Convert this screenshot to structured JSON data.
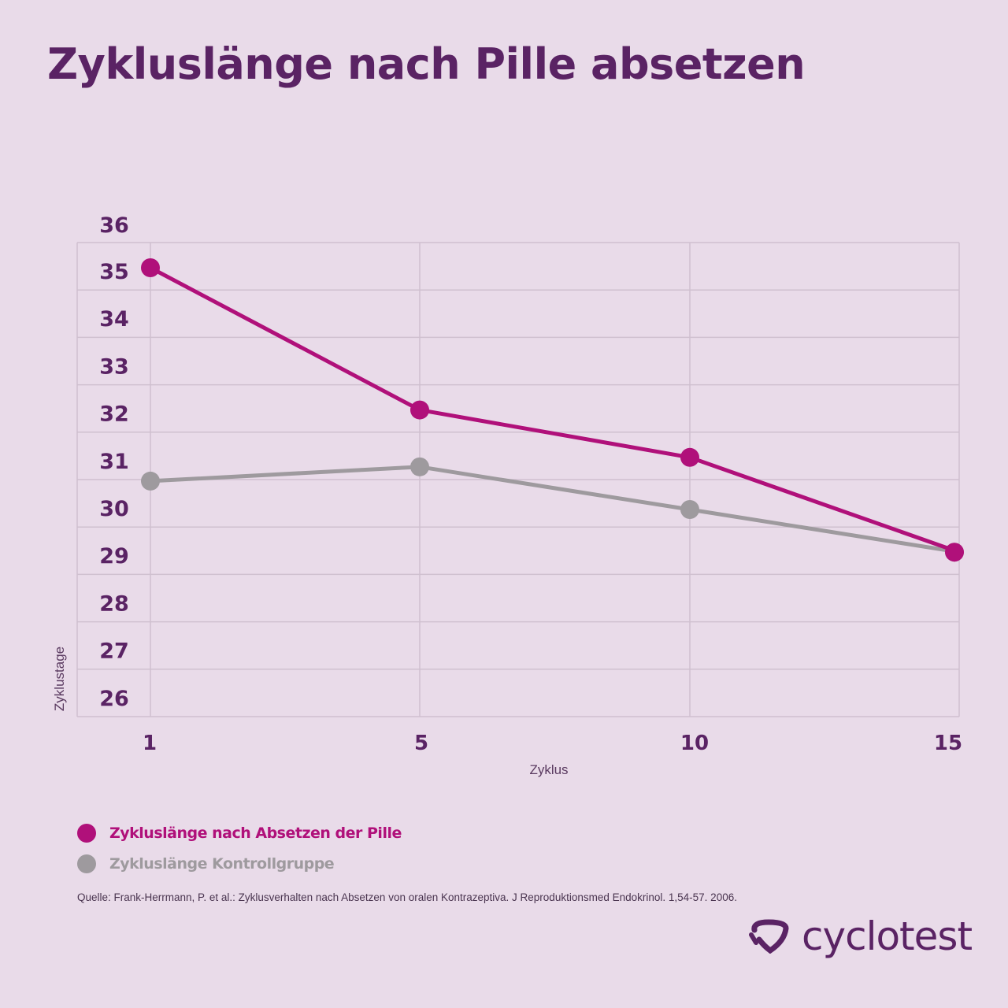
{
  "title": "Zykluslänge nach Pille absetzen",
  "chart_data": {
    "type": "line",
    "title": "Zykluslänge nach Pille absetzen",
    "xlabel": "Zyklus",
    "ylabel": "Zyklustage",
    "x": [
      1,
      5,
      10,
      15
    ],
    "y_ticks": [
      36,
      35,
      34,
      33,
      32,
      31,
      30,
      29,
      28,
      27,
      26
    ],
    "ylim": [
      26,
      36
    ],
    "grid": true,
    "legend_position": "bottom-left",
    "series": [
      {
        "name": "Zykluslänge nach Absetzen der Pille",
        "color": "#b0107a",
        "values": [
          35,
          32,
          31,
          29
        ]
      },
      {
        "name": "Zykluslänge Kontrollgruppe",
        "color": "#9e9a9e",
        "values": [
          30.5,
          30.8,
          29.9,
          29
        ]
      }
    ]
  },
  "source": "Quelle: Frank-Herrmann, P. et al.: Zyklusverhalten nach Absetzen von oralen Kontrazeptiva. J Reproduktionsmed Endokrinol. 1,54-57. 2006.",
  "logo": {
    "text": "cyclotest",
    "color": "#5a2364"
  }
}
